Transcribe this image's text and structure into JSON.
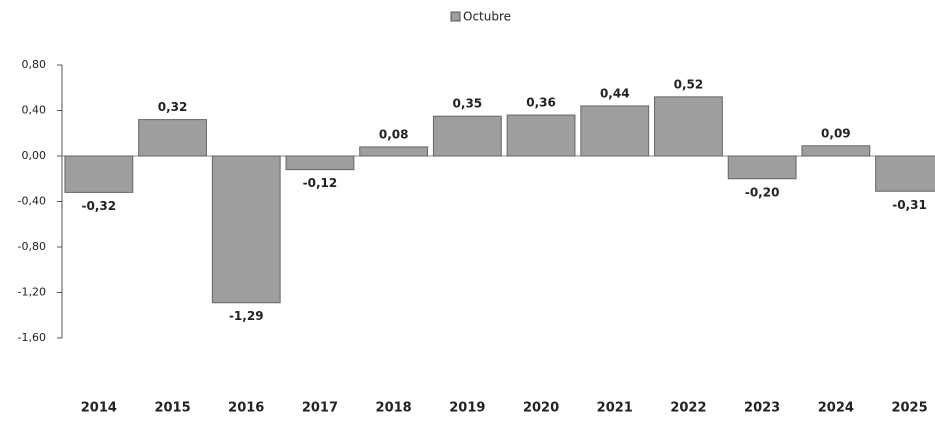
{
  "chart_data": {
    "type": "bar",
    "series": [
      {
        "name": "Octubre",
        "color": "#9e9e9e",
        "values": [
          -0.32,
          0.32,
          -1.29,
          -0.12,
          0.08,
          0.35,
          0.36,
          0.44,
          0.52,
          -0.2,
          0.09,
          -0.31
        ],
        "value_labels": [
          "-0,32",
          "0,32",
          "-1,29",
          "-0,12",
          "0,08",
          "0,35",
          "0,36",
          "0,44",
          "0,52",
          "-0,20",
          "0,09",
          "-0,31"
        ]
      }
    ],
    "categories": [
      "2014",
      "2015",
      "2016",
      "2017",
      "2018",
      "2019",
      "2020",
      "2021",
      "2022",
      "2023",
      "2024",
      "2025"
    ],
    "ylim": [
      -1.6,
      0.8
    ],
    "yticks": [
      {
        "value": 0.8,
        "label": "0,80"
      },
      {
        "value": 0.4,
        "label": "0,40"
      },
      {
        "value": 0,
        "label": "0,00"
      },
      {
        "value": -0.4,
        "label": "-0,40"
      },
      {
        "value": -0.8,
        "label": "-0,80"
      },
      {
        "value": -1.2,
        "label": "-1,20"
      },
      {
        "value": -1.6,
        "label": "-1,60"
      }
    ],
    "legend": "top"
  }
}
